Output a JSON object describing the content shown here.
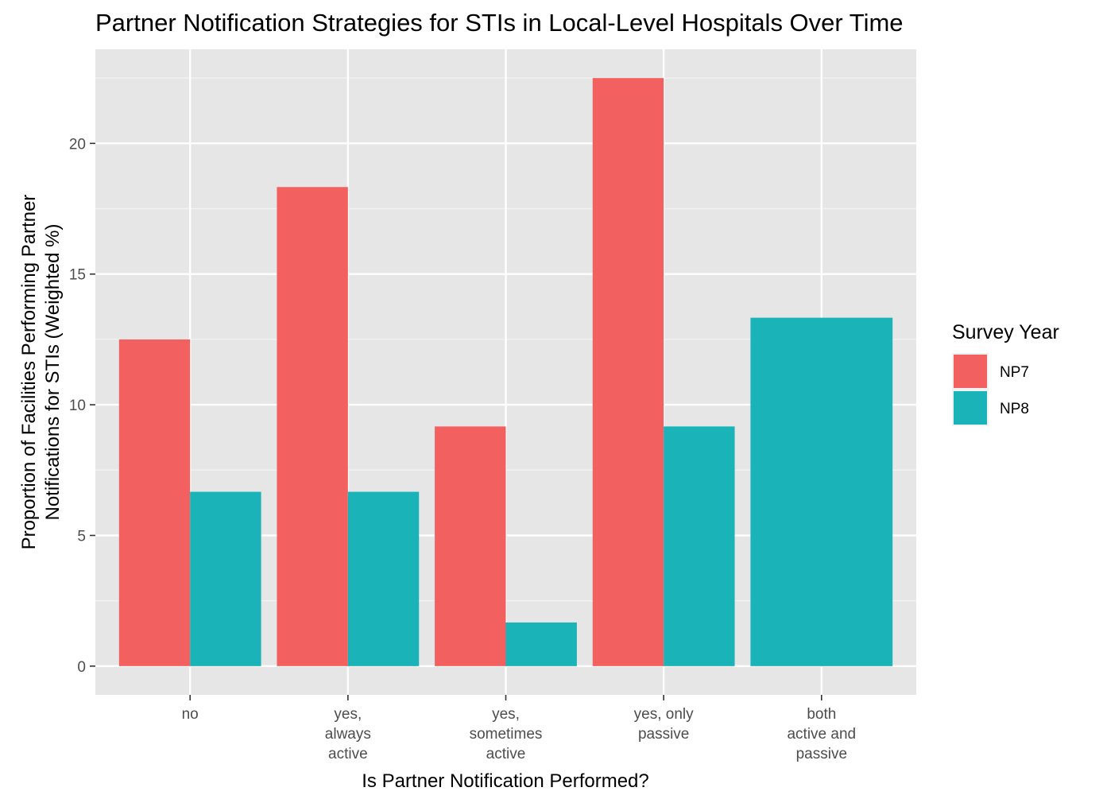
{
  "chart_data": {
    "type": "bar",
    "title": "Partner Notification Strategies for STIs in Local-Level Hospitals Over Time",
    "xlabel": "Is Partner Notification Performed?",
    "ylabel_lines": [
      "Proportion of Facilities Performing Partner",
      "Notifications for STIs (Weighted %)"
    ],
    "categories": [
      [
        "no"
      ],
      [
        "yes,",
        "always",
        "active"
      ],
      [
        "yes,",
        "sometimes",
        "active"
      ],
      [
        "yes, only",
        "passive"
      ],
      [
        "both",
        "active and",
        "passive"
      ]
    ],
    "series": [
      {
        "name": "NP7",
        "color": "#F36060",
        "values": [
          12.5,
          18.33,
          9.17,
          22.5,
          null
        ]
      },
      {
        "name": "NP8",
        "color": "#1AB3B8",
        "values": [
          6.67,
          6.67,
          1.67,
          9.17,
          13.33
        ]
      }
    ],
    "ylim": [
      -1.1,
      23.6
    ],
    "yticks": [
      0,
      5,
      10,
      15,
      20
    ],
    "grid": true,
    "legend": {
      "title": "Survey Year",
      "placement": "right"
    }
  }
}
